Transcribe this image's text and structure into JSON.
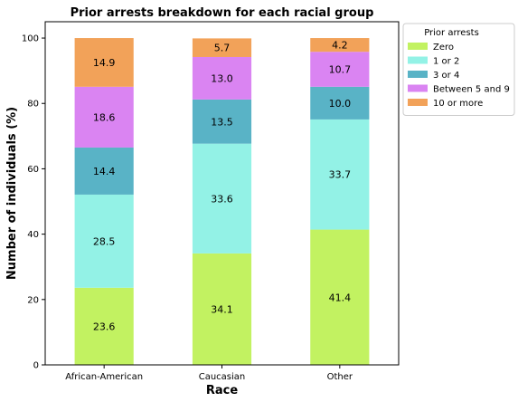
{
  "chart_data": {
    "type": "bar",
    "stacked": true,
    "title": "Prior arrests breakdown for each racial group",
    "xlabel": "Race",
    "ylabel": "Number of individuals (%)",
    "ylim": [
      0,
      105
    ],
    "yticks": [
      0,
      20,
      40,
      60,
      80,
      100
    ],
    "categories": [
      "African-American",
      "Caucasian",
      "Other"
    ],
    "series": [
      {
        "name": "Zero",
        "color": "#c2f261",
        "values": [
          23.6,
          34.1,
          41.4
        ]
      },
      {
        "name": "1 or 2",
        "color": "#93f2e6",
        "values": [
          28.5,
          33.6,
          33.7
        ]
      },
      {
        "name": "3 or 4",
        "color": "#59b3c6",
        "values": [
          14.4,
          13.5,
          10.0
        ]
      },
      {
        "name": "Between 5 and 9",
        "color": "#da84f2",
        "values": [
          18.6,
          13.0,
          10.7
        ]
      },
      {
        "name": "10 or more",
        "color": "#f2a259",
        "values": [
          14.9,
          5.7,
          4.2
        ]
      }
    ],
    "legend": {
      "title": "Prior arrests",
      "placement": "outside-right"
    },
    "grid": false
  }
}
